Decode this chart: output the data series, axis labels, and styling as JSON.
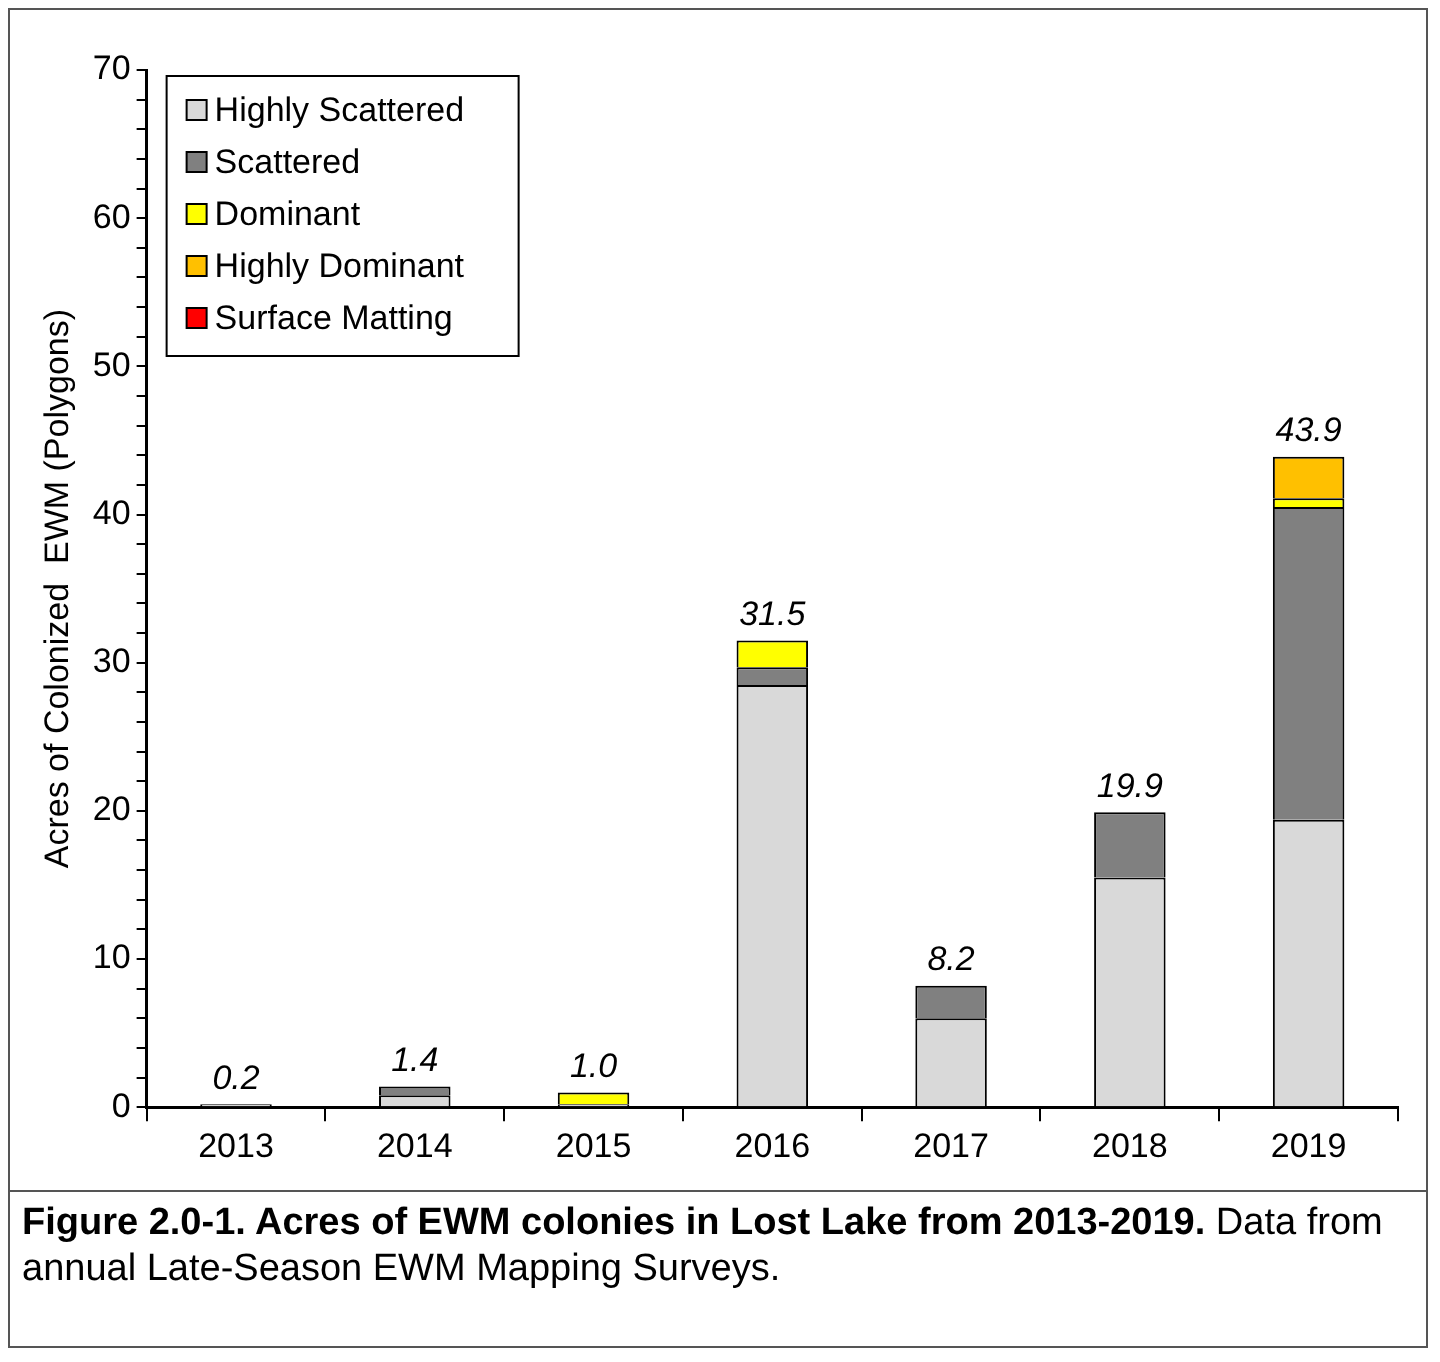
{
  "chart_data": {
    "type": "bar",
    "stacked": true,
    "title": "Figure 2.0-1. Acres of EWM colonies in Lost Lake from 2013-2019.",
    "annotations": [
      "Data from annual Late-Season EWM Mapping Surveys."
    ],
    "ylabel": "Acres of Colonized  EWM (Polygons)",
    "categories": [
      "2013",
      "2014",
      "2015",
      "2016",
      "2017",
      "2018",
      "2019"
    ],
    "series": [
      {
        "name": "Highly Scattered",
        "color": "#d9d9d9",
        "values": [
          0.2,
          0.8,
          0.2,
          28.5,
          6.0,
          15.5,
          19.4
        ]
      },
      {
        "name": "Scattered",
        "color": "#808080",
        "values": [
          0,
          0.6,
          0,
          1.2,
          2.2,
          4.4,
          21.1
        ]
      },
      {
        "name": "Dominant",
        "color": "#ffff00",
        "values": [
          0,
          0,
          0.8,
          1.8,
          0,
          0,
          0.6
        ]
      },
      {
        "name": "Highly Dominant",
        "color": "#ffc000",
        "values": [
          0,
          0,
          0,
          0,
          0,
          0,
          2.8
        ]
      },
      {
        "name": "Surface Matting",
        "color": "#ff0000",
        "values": [
          0,
          0,
          0,
          0,
          0,
          0,
          0
        ]
      }
    ],
    "totals": [
      "0.2",
      "1.4",
      "1.0",
      "31.5",
      "8.2",
      "19.9",
      "43.9"
    ],
    "ylim": [
      0,
      70
    ],
    "yticks": [
      0,
      {
        "value": 2,
        "label": null
      },
      {
        "value": 4,
        "label": null
      },
      {
        "value": 6,
        "label": null
      },
      {
        "value": 8,
        "label": null
      },
      10,
      {
        "value": 12,
        "label": null
      },
      {
        "value": 14,
        "label": null
      },
      {
        "value": 16,
        "label": null
      },
      {
        "value": 18,
        "label": null
      },
      20,
      {
        "value": 22,
        "label": null
      },
      {
        "value": 24,
        "label": null
      },
      {
        "value": 26,
        "label": null
      },
      {
        "value": 28,
        "label": null
      },
      30,
      {
        "value": 32,
        "label": null
      },
      {
        "value": 34,
        "label": null
      },
      {
        "value": 36,
        "label": null
      },
      {
        "value": 38,
        "label": null
      },
      40,
      {
        "value": 42,
        "label": null
      },
      {
        "value": 44,
        "label": null
      },
      {
        "value": 46,
        "label": null
      },
      {
        "value": 48,
        "label": null
      },
      50,
      {
        "value": 52,
        "label": null
      },
      {
        "value": 54,
        "label": null
      },
      {
        "value": 56,
        "label": null
      },
      {
        "value": 58,
        "label": null
      },
      60,
      {
        "value": 62,
        "label": null
      },
      {
        "value": 64,
        "label": null
      },
      {
        "value": 66,
        "label": null
      },
      {
        "value": 68,
        "label": null
      },
      70
    ],
    "grid": false,
    "legend": "top left"
  }
}
